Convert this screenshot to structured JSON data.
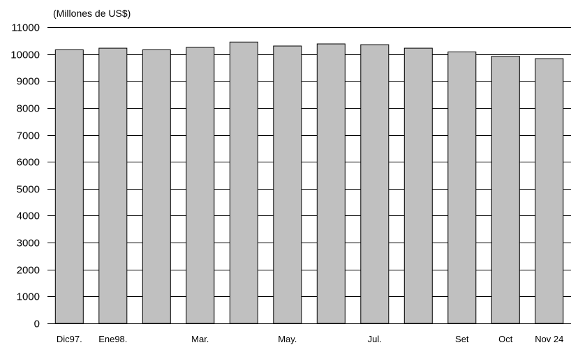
{
  "chart_data": {
    "type": "bar",
    "unit_label": "(Millones de US$)",
    "categories": [
      "Dic97.",
      "Ene98.",
      "",
      "Mar.",
      "",
      "May.",
      "",
      "Jul.",
      "",
      "Set",
      "Oct",
      "Nov 24"
    ],
    "values": [
      10160,
      10220,
      10160,
      10250,
      10450,
      10300,
      10380,
      10350,
      10220,
      10080,
      9920,
      9830
    ],
    "ylim": [
      0,
      11000
    ],
    "yticks": [
      0,
      1000,
      2000,
      3000,
      4000,
      5000,
      6000,
      7000,
      8000,
      9000,
      10000,
      11000
    ],
    "grid": true,
    "bar_color": "#c0c0c0",
    "grid_color": "#000000"
  }
}
